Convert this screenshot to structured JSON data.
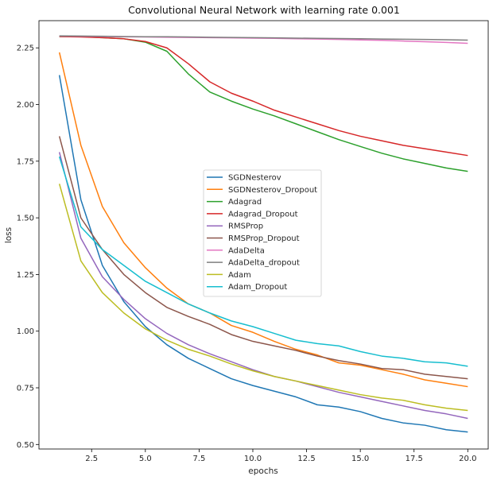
{
  "chart_data": {
    "type": "line",
    "title": "Convolutional Neural Network with learning rate 0.001",
    "xlabel": "epochs",
    "ylabel": "loss",
    "xlim": [
      0.05,
      20.95
    ],
    "ylim": [
      0.48,
      2.37
    ],
    "xticks": [
      2.5,
      5.0,
      7.5,
      10.0,
      12.5,
      15.0,
      17.5,
      20.0
    ],
    "xtick_labels": [
      "2.5",
      "5.0",
      "7.5",
      "10.0",
      "12.5",
      "15.0",
      "17.5",
      "20.0"
    ],
    "yticks": [
      0.5,
      0.75,
      1.0,
      1.25,
      1.5,
      1.75,
      2.0,
      2.25
    ],
    "ytick_labels": [
      "0.50",
      "0.75",
      "1.00",
      "1.25",
      "1.50",
      "1.75",
      "2.00",
      "2.25"
    ],
    "grid": false,
    "legend_position": "center",
    "x": [
      1,
      2,
      3,
      4,
      5,
      6,
      7,
      8,
      9,
      10,
      11,
      12,
      13,
      14,
      15,
      16,
      17,
      18,
      19,
      20
    ],
    "series": [
      {
        "name": "SGDNesterov",
        "color": "#1f77b4",
        "values": [
          2.13,
          1.58,
          1.29,
          1.13,
          1.02,
          0.94,
          0.88,
          0.835,
          0.79,
          0.76,
          0.735,
          0.71,
          0.675,
          0.665,
          0.645,
          0.615,
          0.595,
          0.585,
          0.565,
          0.555
        ]
      },
      {
        "name": "SGDNesterov_Dropout",
        "color": "#ff7f0e",
        "values": [
          2.23,
          1.82,
          1.55,
          1.39,
          1.28,
          1.19,
          1.12,
          1.08,
          1.025,
          0.995,
          0.955,
          0.92,
          0.895,
          0.86,
          0.85,
          0.83,
          0.81,
          0.785,
          0.77,
          0.755
        ]
      },
      {
        "name": "Adagrad",
        "color": "#2ca02c",
        "values": [
          2.3,
          2.3,
          2.295,
          2.29,
          2.275,
          2.235,
          2.135,
          2.055,
          2.015,
          1.98,
          1.95,
          1.915,
          1.88,
          1.845,
          1.815,
          1.785,
          1.76,
          1.74,
          1.72,
          1.705
        ]
      },
      {
        "name": "Adagrad_Dropout",
        "color": "#d62728",
        "values": [
          2.3,
          2.298,
          2.295,
          2.29,
          2.278,
          2.25,
          2.18,
          2.1,
          2.05,
          2.015,
          1.975,
          1.945,
          1.915,
          1.885,
          1.86,
          1.84,
          1.82,
          1.805,
          1.79,
          1.775
        ]
      },
      {
        "name": "RMSProp",
        "color": "#9467bd",
        "values": [
          1.79,
          1.41,
          1.24,
          1.14,
          1.055,
          0.99,
          0.94,
          0.9,
          0.865,
          0.83,
          0.8,
          0.78,
          0.755,
          0.73,
          0.71,
          0.69,
          0.67,
          0.65,
          0.635,
          0.615
        ]
      },
      {
        "name": "RMSProp_Dropout",
        "color": "#8c564b",
        "values": [
          1.86,
          1.5,
          1.36,
          1.25,
          1.17,
          1.105,
          1.065,
          1.03,
          0.985,
          0.955,
          0.935,
          0.915,
          0.89,
          0.87,
          0.855,
          0.835,
          0.83,
          0.81,
          0.8,
          0.79
        ]
      },
      {
        "name": "AdaDelta",
        "color": "#e377c2",
        "values": [
          2.302,
          2.301,
          2.3,
          2.299,
          2.298,
          2.297,
          2.296,
          2.295,
          2.294,
          2.293,
          2.292,
          2.29,
          2.289,
          2.287,
          2.285,
          2.283,
          2.28,
          2.277,
          2.274,
          2.27
        ]
      },
      {
        "name": "AdaDelta_dropout",
        "color": "#7f7f7f",
        "values": [
          2.303,
          2.302,
          2.301,
          2.3,
          2.299,
          2.299,
          2.298,
          2.297,
          2.296,
          2.295,
          2.294,
          2.293,
          2.292,
          2.291,
          2.29,
          2.289,
          2.288,
          2.287,
          2.286,
          2.284
        ]
      },
      {
        "name": "Adam",
        "color": "#bcbd22",
        "values": [
          1.65,
          1.31,
          1.17,
          1.08,
          1.01,
          0.96,
          0.92,
          0.89,
          0.855,
          0.825,
          0.8,
          0.78,
          0.76,
          0.74,
          0.72,
          0.705,
          0.695,
          0.675,
          0.66,
          0.65
        ]
      },
      {
        "name": "Adam_Dropout",
        "color": "#17becf",
        "values": [
          1.77,
          1.46,
          1.36,
          1.29,
          1.22,
          1.17,
          1.12,
          1.08,
          1.045,
          1.02,
          0.99,
          0.96,
          0.945,
          0.935,
          0.91,
          0.89,
          0.88,
          0.865,
          0.86,
          0.845
        ]
      }
    ]
  }
}
